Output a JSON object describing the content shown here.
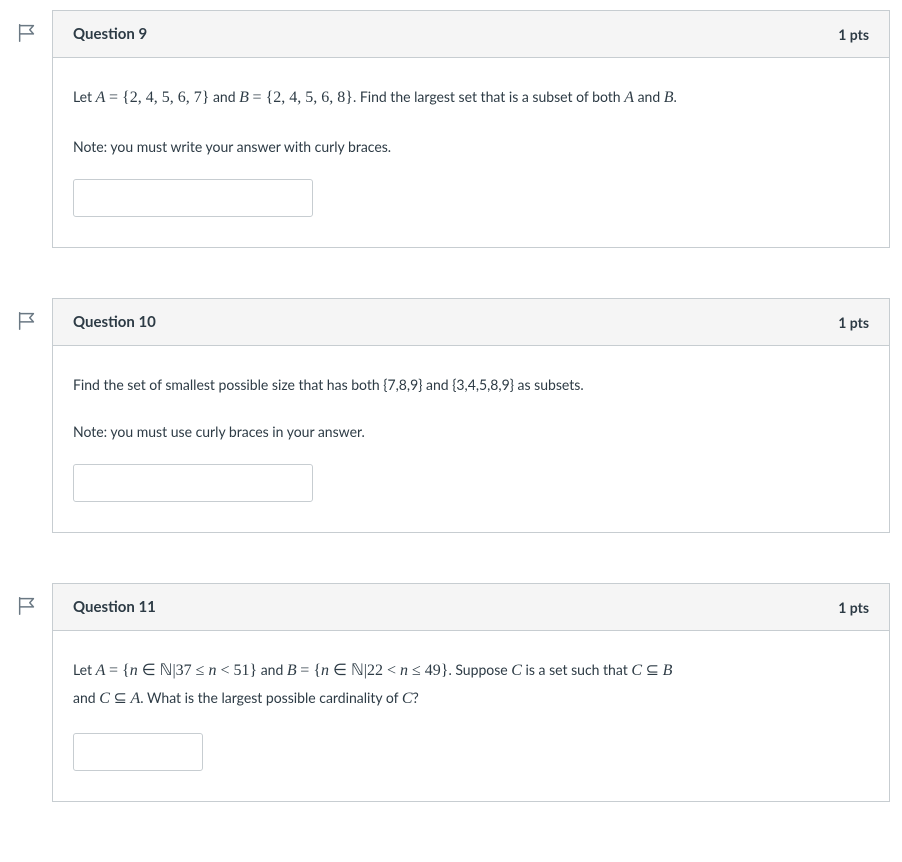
{
  "questions": [
    {
      "title": "Question 9",
      "points": "1 pts",
      "answer_value": "",
      "body_html": "<p>Let <span class='math mathit'>A</span> <span class='math'>= {2, 4, 5, 6, 7}</span> and <span class='math mathit'>B</span> <span class='math'>= {2, 4, 5, 6, 8}</span>. Find the largest set that is a subset of both <span class='math mathit'>A</span> and <span class='math mathit'>B</span>.</p><p>Note: you must write your answer with curly braces.</p>",
      "input_width": "wide"
    },
    {
      "title": "Question 10",
      "points": "1 pts",
      "answer_value": "",
      "body_html": "<p>Find the set of smallest possible size that has both {7,8,9} and {3,4,5,8,9} as subsets.</p><p>Note: you must use curly braces in your answer.</p>",
      "input_width": "wide"
    },
    {
      "title": "Question 11",
      "points": "1 pts",
      "answer_value": "",
      "body_html": "<p style='margin-bottom:4px;'>Let <span class='math mathit'>A</span> <span class='math'>= {<span class='mathit'>n</span> ∈ ℕ|37 ≤ <span class='mathit'>n</span> &lt; 51}</span> and <span class='math mathit'>B</span> <span class='math'>= {<span class='mathit'>n</span> ∈ ℕ|22 &lt; <span class='mathit'>n</span> ≤ 49}</span>. Suppose <span class='math mathit'>C</span> is a set such that <span class='math mathit'>C</span> <span class='math'>⊆</span> <span class='math mathit'>B</span></p><p>and <span class='math mathit'>C</span> <span class='math'>⊆</span> <span class='math mathit'>A</span>. What is the largest possible cardinality of <span class='math mathit'>C</span>?</p>",
      "input_width": "narrow"
    }
  ],
  "colors": {
    "border": "#c7cdd1",
    "text": "#2d3b45",
    "header_bg": "#f5f5f5",
    "flag_stroke": "#6a7883"
  }
}
